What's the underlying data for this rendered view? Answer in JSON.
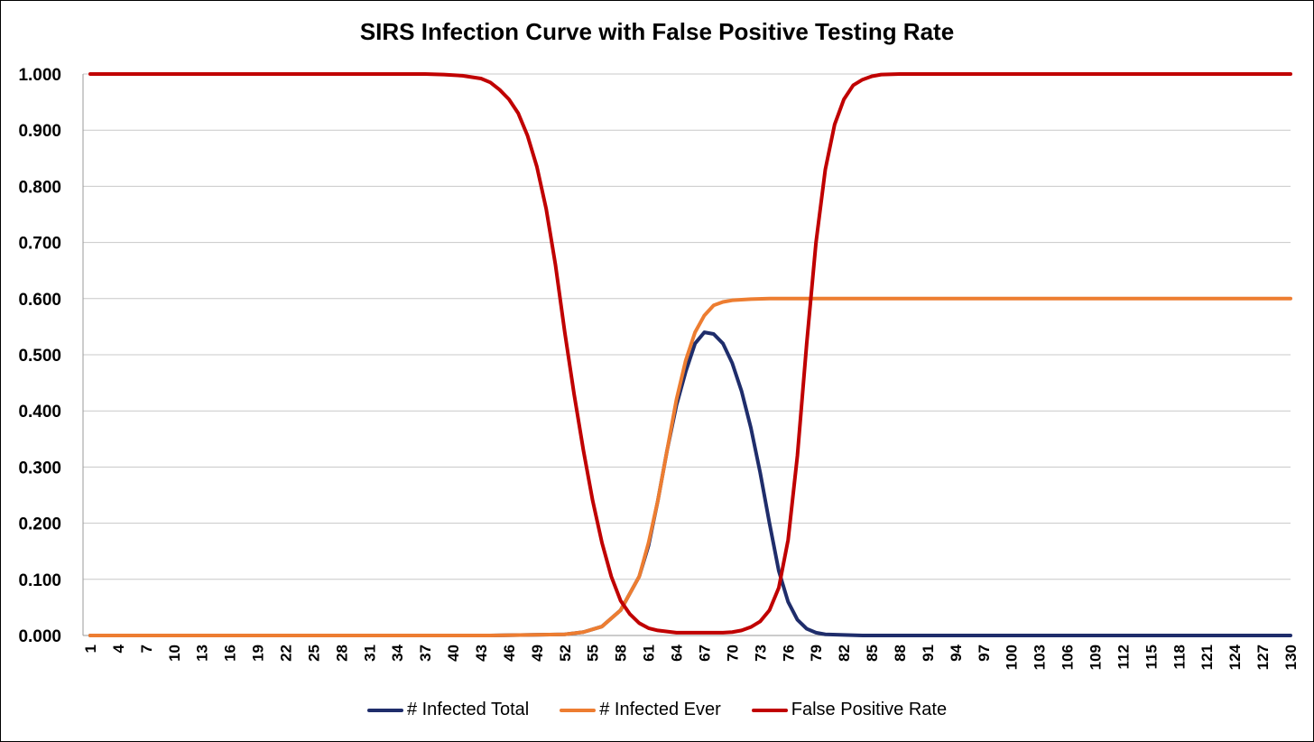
{
  "chart_data": {
    "type": "line",
    "title": "SIRS Infection Curve with False Positive Testing Rate",
    "xlabel": "",
    "ylabel": "",
    "x_range": [
      1,
      130
    ],
    "ylim": [
      0,
      1
    ],
    "y_ticks": [
      "0.000",
      "0.100",
      "0.200",
      "0.300",
      "0.400",
      "0.500",
      "0.600",
      "0.700",
      "0.800",
      "0.900",
      "1.000"
    ],
    "x_tick_labels": [
      "1",
      "4",
      "7",
      "10",
      "13",
      "16",
      "19",
      "22",
      "25",
      "28",
      "31",
      "34",
      "37",
      "40",
      "43",
      "46",
      "49",
      "52",
      "55",
      "58",
      "61",
      "64",
      "67",
      "70",
      "73",
      "76",
      "79",
      "82",
      "85",
      "88",
      "91",
      "94",
      "97",
      "100",
      "103",
      "106",
      "109",
      "112",
      "115",
      "118",
      "121",
      "124",
      "127",
      "130"
    ],
    "grid": true,
    "legend_position": "bottom",
    "series": [
      {
        "name": "# Infected Total",
        "color": "#1f2d6b",
        "points": [
          [
            1,
            0
          ],
          [
            44,
            0
          ],
          [
            48,
            0.001
          ],
          [
            52,
            0.002
          ],
          [
            54,
            0.006
          ],
          [
            56,
            0.016
          ],
          [
            58,
            0.045
          ],
          [
            60,
            0.105
          ],
          [
            61,
            0.16
          ],
          [
            62,
            0.24
          ],
          [
            63,
            0.33
          ],
          [
            64,
            0.41
          ],
          [
            65,
            0.47
          ],
          [
            66,
            0.52
          ],
          [
            67,
            0.54
          ],
          [
            68,
            0.537
          ],
          [
            69,
            0.52
          ],
          [
            70,
            0.485
          ],
          [
            71,
            0.435
          ],
          [
            72,
            0.37
          ],
          [
            73,
            0.29
          ],
          [
            74,
            0.2
          ],
          [
            75,
            0.115
          ],
          [
            76,
            0.06
          ],
          [
            77,
            0.028
          ],
          [
            78,
            0.012
          ],
          [
            79,
            0.005
          ],
          [
            80,
            0.002
          ],
          [
            82,
            0.001
          ],
          [
            84,
            0
          ],
          [
            130,
            0
          ]
        ]
      },
      {
        "name": "# Infected Ever",
        "color": "#ed7d31",
        "points": [
          [
            1,
            0
          ],
          [
            44,
            0
          ],
          [
            48,
            0.001
          ],
          [
            52,
            0.002
          ],
          [
            54,
            0.006
          ],
          [
            56,
            0.016
          ],
          [
            58,
            0.045
          ],
          [
            60,
            0.105
          ],
          [
            61,
            0.165
          ],
          [
            62,
            0.24
          ],
          [
            63,
            0.33
          ],
          [
            64,
            0.42
          ],
          [
            65,
            0.49
          ],
          [
            66,
            0.54
          ],
          [
            67,
            0.57
          ],
          [
            68,
            0.588
          ],
          [
            69,
            0.594
          ],
          [
            70,
            0.597
          ],
          [
            72,
            0.599
          ],
          [
            74,
            0.6
          ],
          [
            130,
            0.6
          ]
        ]
      },
      {
        "name": "False Positive Rate",
        "color": "#c00000",
        "points": [
          [
            1,
            1
          ],
          [
            37,
            1
          ],
          [
            39,
            0.999
          ],
          [
            41,
            0.997
          ],
          [
            43,
            0.992
          ],
          [
            44,
            0.985
          ],
          [
            45,
            0.972
          ],
          [
            46,
            0.955
          ],
          [
            47,
            0.93
          ],
          [
            48,
            0.89
          ],
          [
            49,
            0.835
          ],
          [
            50,
            0.76
          ],
          [
            51,
            0.66
          ],
          [
            52,
            0.54
          ],
          [
            53,
            0.43
          ],
          [
            54,
            0.33
          ],
          [
            55,
            0.24
          ],
          [
            56,
            0.165
          ],
          [
            57,
            0.105
          ],
          [
            58,
            0.062
          ],
          [
            59,
            0.038
          ],
          [
            60,
            0.022
          ],
          [
            61,
            0.013
          ],
          [
            62,
            0.009
          ],
          [
            63,
            0.007
          ],
          [
            64,
            0.005
          ],
          [
            66,
            0.005
          ],
          [
            69,
            0.005
          ],
          [
            70,
            0.006
          ],
          [
            71,
            0.009
          ],
          [
            72,
            0.015
          ],
          [
            73,
            0.025
          ],
          [
            74,
            0.045
          ],
          [
            75,
            0.085
          ],
          [
            76,
            0.17
          ],
          [
            77,
            0.32
          ],
          [
            78,
            0.52
          ],
          [
            79,
            0.7
          ],
          [
            80,
            0.83
          ],
          [
            81,
            0.91
          ],
          [
            82,
            0.955
          ],
          [
            83,
            0.98
          ],
          [
            84,
            0.99
          ],
          [
            85,
            0.996
          ],
          [
            86,
            0.999
          ],
          [
            88,
            1
          ],
          [
            130,
            1
          ]
        ]
      }
    ]
  }
}
